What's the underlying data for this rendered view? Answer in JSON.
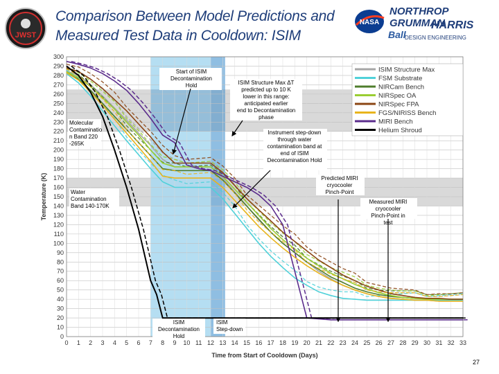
{
  "header": {
    "title": "Comparison Between Model Predictions and Measured Test Data in Cooldown: ISIM",
    "logos": {
      "jwst": "JWST",
      "nasa": "NASA",
      "northrop": "NORTHROP GRUMMAN",
      "harris": "HARRIS",
      "ball": "Ball",
      "design_eng": "DESIGN ENGINEERING"
    }
  },
  "page_number": "27",
  "colors": {
    "title": "#1f3e7a",
    "band_blue_light": "#a8d8f0",
    "band_blue_dark": "#6aa8d8",
    "band_gray": "#d9d9d9"
  },
  "chart_data": {
    "type": "line",
    "xlabel": "Time from Start of Cooldown (Days)",
    "ylabel": "Temperature (K)",
    "xlim": [
      0,
      33
    ],
    "ylim": [
      0,
      300
    ],
    "xticks": [
      0,
      1,
      2,
      3,
      4,
      5,
      6,
      7,
      8,
      9,
      10,
      11,
      12,
      13,
      14,
      15,
      16,
      17,
      18,
      19,
      20,
      21,
      22,
      23,
      24,
      25,
      26,
      27,
      28,
      29,
      30,
      31,
      32,
      33
    ],
    "yticks": [
      0,
      10,
      20,
      30,
      40,
      50,
      60,
      70,
      80,
      90,
      100,
      110,
      120,
      130,
      140,
      150,
      160,
      170,
      180,
      190,
      200,
      210,
      220,
      230,
      240,
      250,
      260,
      270,
      280,
      290,
      300
    ],
    "bands": {
      "molecular_band": [
        220,
        265
      ],
      "water_band": [
        140,
        170
      ],
      "decon_hold_days": [
        7,
        12
      ],
      "stepdown_days": [
        12,
        13.2
      ]
    },
    "legend": [
      "ISIM Structure Max",
      "FSM Substrate",
      "NIRCam Bench",
      "NIRSpec OA",
      "NIRSpec FPA",
      "FGS/NIRISS Bench",
      "MIRI Bench",
      "Helium Shroud"
    ],
    "series": [
      {
        "name": "ISIM Structure Max",
        "color": "#a6a6a6",
        "x": [
          0,
          1,
          2,
          3,
          4,
          5,
          6,
          7,
          8,
          9,
          10,
          11,
          12,
          13,
          14,
          15,
          16,
          17,
          18,
          19,
          20,
          21,
          22,
          23,
          24,
          25,
          26,
          27,
          28,
          29,
          30,
          31,
          32,
          33
        ],
        "y": [
          285,
          280,
          270,
          258,
          245,
          232,
          218,
          205,
          190,
          182,
          182,
          182,
          182,
          170,
          155,
          140,
          125,
          112,
          100,
          90,
          80,
          70,
          62,
          55,
          50,
          46,
          43,
          41,
          40,
          39,
          39,
          38,
          38,
          38
        ]
      },
      {
        "name": "FSM Substrate",
        "color": "#4fd1d9",
        "x": [
          0,
          1,
          2,
          3,
          4,
          5,
          6,
          7,
          8,
          9,
          10,
          11,
          12,
          13,
          14,
          15,
          16,
          17,
          18,
          19,
          20,
          21,
          22,
          23,
          24,
          25,
          26,
          27,
          28,
          29,
          30,
          31,
          32,
          33
        ],
        "y": [
          282,
          272,
          258,
          242,
          226,
          210,
          195,
          180,
          166,
          160,
          160,
          160,
          160,
          148,
          132,
          116,
          100,
          86,
          74,
          63,
          55,
          48,
          44,
          41,
          40,
          39,
          39,
          39,
          39,
          39,
          39,
          39,
          39,
          39
        ]
      },
      {
        "name": "NIRCam Bench",
        "color": "#4e7d2c",
        "x": [
          0,
          1,
          2,
          3,
          4,
          5,
          6,
          7,
          8,
          9,
          10,
          11,
          12,
          13,
          14,
          15,
          16,
          17,
          18,
          19,
          20,
          21,
          22,
          23,
          24,
          25,
          26,
          27,
          28,
          29,
          30,
          31,
          32,
          33
        ],
        "y": [
          283,
          276,
          264,
          250,
          236,
          222,
          208,
          194,
          180,
          178,
          178,
          178,
          178,
          168,
          154,
          140,
          126,
          112,
          100,
          90,
          80,
          72,
          64,
          58,
          52,
          48,
          45,
          43,
          42,
          41,
          41,
          40,
          40,
          40
        ]
      },
      {
        "name": "NIRSpec OA",
        "color": "#9acd32",
        "x": [
          0,
          1,
          2,
          3,
          4,
          5,
          6,
          7,
          8,
          9,
          10,
          11,
          12,
          13,
          14,
          15,
          16,
          17,
          18,
          19,
          20,
          21,
          22,
          23,
          24,
          25,
          26,
          27,
          28,
          29,
          30,
          31,
          32,
          33
        ],
        "y": [
          284,
          278,
          268,
          256,
          244,
          230,
          216,
          200,
          186,
          182,
          182,
          182,
          182,
          172,
          158,
          144,
          130,
          116,
          104,
          94,
          84,
          76,
          68,
          62,
          56,
          51,
          47,
          44,
          42,
          41,
          40,
          40,
          40,
          40
        ]
      },
      {
        "name": "NIRSpec FPA",
        "color": "#8b4513",
        "x": [
          0,
          1,
          2,
          3,
          4,
          5,
          6,
          7,
          8,
          9,
          10,
          11,
          12,
          13,
          14,
          15,
          16,
          17,
          18,
          19,
          20,
          21,
          22,
          23,
          24,
          25,
          26,
          27,
          28,
          29,
          30,
          31,
          32,
          33
        ],
        "y": [
          288,
          284,
          276,
          266,
          254,
          242,
          228,
          214,
          198,
          186,
          186,
          186,
          186,
          176,
          162,
          148,
          136,
          124,
          112,
          102,
          92,
          82,
          74,
          66,
          60,
          54,
          50,
          46,
          44,
          42,
          41,
          41,
          40,
          40
        ]
      },
      {
        "name": "FGS/NIRISS Bench",
        "color": "#e8b41c",
        "x": [
          0,
          1,
          2,
          3,
          4,
          5,
          6,
          7,
          8,
          9,
          10,
          11,
          12,
          13,
          14,
          15,
          16,
          17,
          18,
          19,
          20,
          21,
          22,
          23,
          24,
          25,
          26,
          27,
          28,
          29,
          30,
          31,
          32,
          33
        ],
        "y": [
          283,
          275,
          262,
          248,
          233,
          218,
          203,
          188,
          172,
          170,
          170,
          170,
          170,
          160,
          146,
          132,
          118,
          106,
          95,
          85,
          76,
          68,
          61,
          55,
          50,
          46,
          43,
          41,
          40,
          39,
          39,
          38,
          38,
          38
        ]
      },
      {
        "name": "MIRI Bench",
        "color": "#5b2c8c",
        "x": [
          0,
          1,
          2,
          3,
          4,
          5,
          6,
          7,
          8,
          9,
          10,
          11,
          12,
          13,
          14,
          15,
          16,
          17,
          18,
          19,
          20,
          21,
          22,
          23,
          24,
          25,
          26,
          27,
          28,
          29,
          30,
          31,
          32,
          33
        ],
        "y": [
          295,
          292,
          288,
          282,
          274,
          264,
          250,
          234,
          216,
          208,
          184,
          180,
          178,
          172,
          166,
          160,
          152,
          140,
          120,
          70,
          20,
          19,
          18,
          18,
          18,
          18,
          18,
          18,
          18,
          18,
          18,
          18,
          18,
          18
        ]
      },
      {
        "name": "Helium Shroud",
        "color": "#000000",
        "x": [
          0,
          1,
          2,
          3,
          4,
          5,
          6,
          7,
          7.5,
          8,
          9,
          10,
          11,
          12,
          13,
          14,
          15,
          16,
          17,
          18,
          19,
          20,
          21,
          22,
          23,
          24,
          25,
          26,
          27,
          28,
          29,
          30,
          31,
          32,
          33
        ],
        "y": [
          290,
          280,
          262,
          236,
          200,
          160,
          115,
          60,
          45,
          20,
          20,
          20,
          20,
          20,
          20,
          20,
          20,
          20,
          20,
          20,
          20,
          20,
          20,
          20,
          20,
          20,
          20,
          20,
          20,
          20,
          20,
          20,
          20,
          20,
          20
        ]
      }
    ],
    "annotations": [
      {
        "id": "decon-start",
        "text": "Start of ISIM Decontamination Hold"
      },
      {
        "id": "struct-max",
        "text": "ISIM Structure Max ΔT predicted up to 10 K lower in this range: anticipated earlier end to Decontamination phase"
      },
      {
        "id": "molecular",
        "text": "Molecular Contaminatio n Band 220 -265K"
      },
      {
        "id": "instrument-step",
        "text": "Instrument step-down through water contamination band at end of ISIM Decontamination Hold"
      },
      {
        "id": "water",
        "text": "Water Contamination Band 140-170K"
      },
      {
        "id": "predicted-miri",
        "text": "Predicted MIRI cryocooler Pinch-Point"
      },
      {
        "id": "measured-miri",
        "text": "Measured MIRI cryocooler Pinch-Point in test"
      },
      {
        "id": "decon-hold",
        "text": "ISIM Decontamination Hold"
      },
      {
        "id": "stepdown",
        "text": "ISIM Step-down"
      }
    ]
  }
}
